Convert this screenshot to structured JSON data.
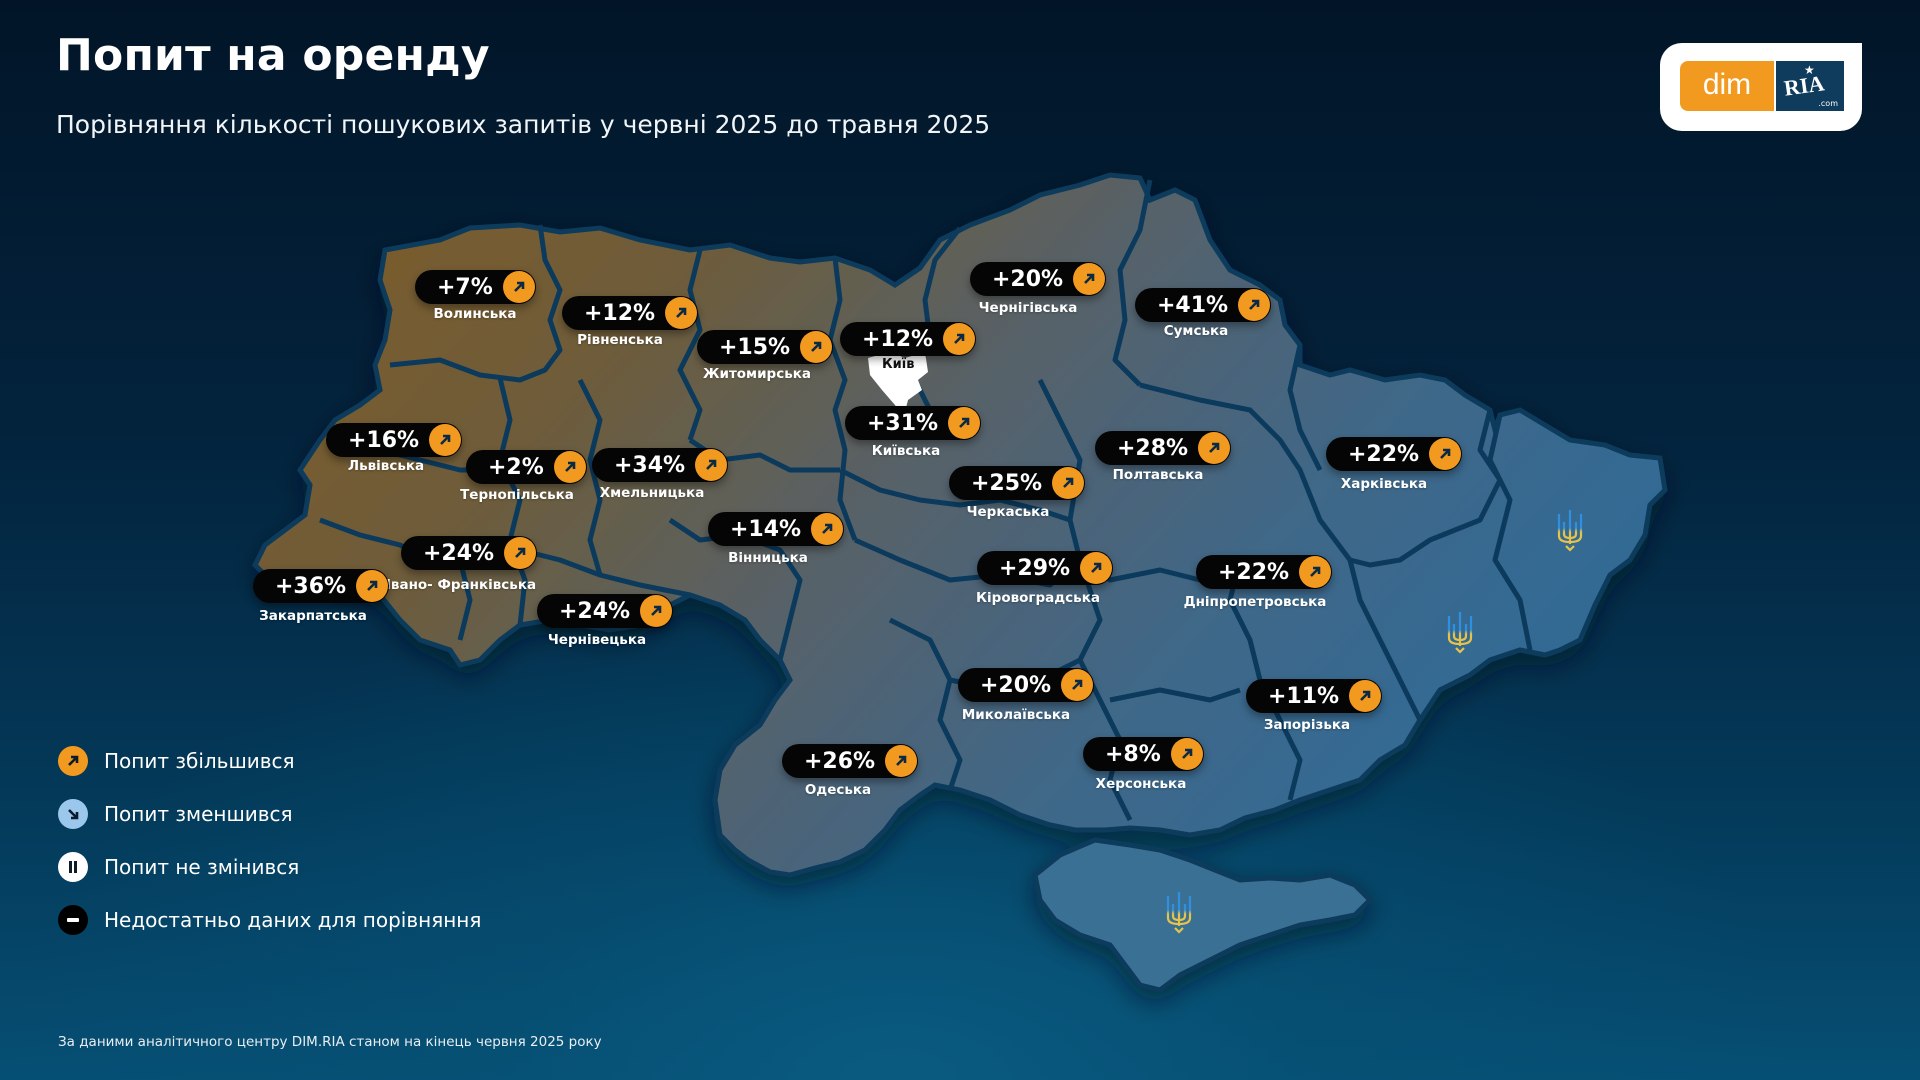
{
  "header": {
    "title": "Попит на оренду",
    "subtitle": "Порівняння кількості пошукових запитів у червні 2025 до травня 2025"
  },
  "logo": {
    "left_text": "dim",
    "right_text": "RIA",
    "right_suffix": ".com",
    "colors": {
      "orange": "#f29a1f",
      "navy": "#0f3b5c"
    }
  },
  "colors": {
    "increase": "#f29a1f",
    "decrease": "#9cc7ec",
    "no_change": "#ffffff",
    "no_data": "#000000",
    "pill_bg": "#050505",
    "west_region": "#7a5a2c",
    "east_region": "#3c6a8e"
  },
  "map": {
    "city_label": "Київ",
    "regions": [
      {
        "name": "Волинська",
        "value": "+7%",
        "trend": "increase"
      },
      {
        "name": "Рівненська",
        "value": "+12%",
        "trend": "increase"
      },
      {
        "name": "Житомирська",
        "value": "+15%",
        "trend": "increase"
      },
      {
        "name": "Київ",
        "value": "+12%",
        "trend": "increase"
      },
      {
        "name": "Чернігівська",
        "value": "+20%",
        "trend": "increase"
      },
      {
        "name": "Сумська",
        "value": "+41%",
        "trend": "increase"
      },
      {
        "name": "Львівська",
        "value": "+16%",
        "trend": "increase"
      },
      {
        "name": "Тернопільська",
        "value": "+2%",
        "trend": "increase"
      },
      {
        "name": "Хмельницька",
        "value": "+34%",
        "trend": "increase"
      },
      {
        "name": "Київська",
        "value": "+31%",
        "trend": "increase"
      },
      {
        "name": "Полтавська",
        "value": "+28%",
        "trend": "increase"
      },
      {
        "name": "Харківська",
        "value": "+22%",
        "trend": "increase"
      },
      {
        "name": "Черкаська",
        "value": "+25%",
        "trend": "increase"
      },
      {
        "name": "Вінницька",
        "value": "+14%",
        "trend": "increase"
      },
      {
        "name": "Івано- Франківська",
        "value": "+24%",
        "trend": "increase"
      },
      {
        "name": "Закарпатська",
        "value": "+36%",
        "trend": "increase"
      },
      {
        "name": "Чернівецька",
        "value": "+24%",
        "trend": "increase"
      },
      {
        "name": "Кіровоградська",
        "value": "+29%",
        "trend": "increase"
      },
      {
        "name": "Дніпропетровська",
        "value": "+22%",
        "trend": "increase"
      },
      {
        "name": "Миколаївська",
        "value": "+20%",
        "trend": "increase"
      },
      {
        "name": "Запорізька",
        "value": "+11%",
        "trend": "increase"
      },
      {
        "name": "Одеська",
        "value": "+26%",
        "trend": "increase"
      },
      {
        "name": "Херсонська",
        "value": "+8%",
        "trend": "increase"
      }
    ]
  },
  "legend": {
    "items": [
      {
        "label": "Попит збільшився",
        "icon": "arrow-up-right-icon"
      },
      {
        "label": "Попит зменшився",
        "icon": "arrow-down-right-icon"
      },
      {
        "label": "Попит не змінився",
        "icon": "pause-icon"
      },
      {
        "label": "Недостатньо даних для порівняння",
        "icon": "minus-icon"
      }
    ]
  },
  "footnote": "За даними аналітичного центру DIM.RIA станом на кінець червня 2025 року"
}
